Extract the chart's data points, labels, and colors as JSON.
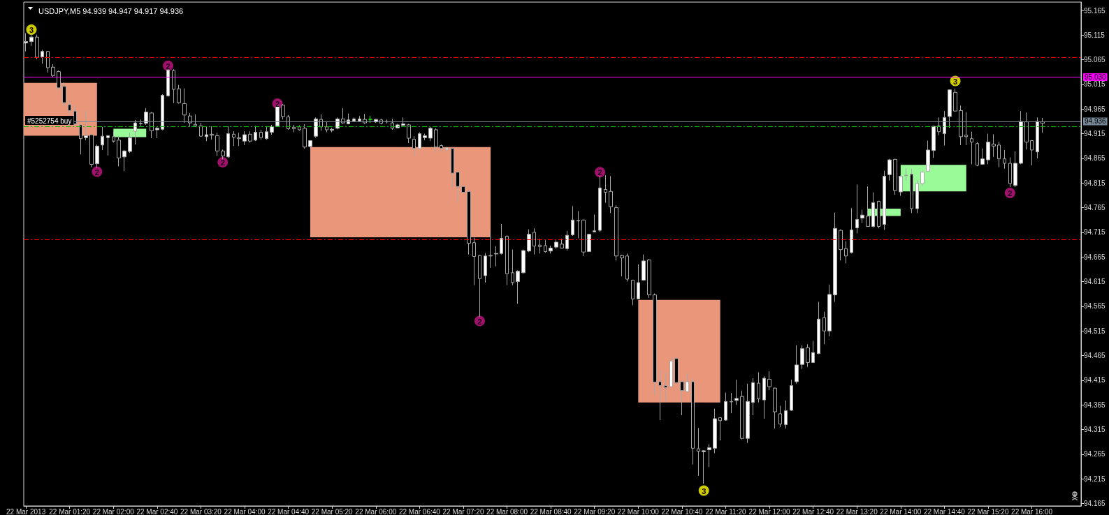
{
  "chart_data": {
    "type": "candlestick",
    "title": "USDJPY,M5 94.939 94.947 94.917 94.936",
    "x": [
      "2013-03-22T00:40",
      "2013-03-22T00:45",
      "2013-03-22T00:50",
      "2013-03-22T00:55",
      "2013-03-22T01:00",
      "2013-03-22T01:05",
      "2013-03-22T01:10",
      "2013-03-22T01:15",
      "2013-03-22T01:20",
      "2013-03-22T01:25",
      "2013-03-22T01:30",
      "2013-03-22T01:35",
      "2013-03-22T01:40",
      "2013-03-22T01:45",
      "2013-03-22T01:50",
      "2013-03-22T01:55",
      "2013-03-22T02:00",
      "2013-03-22T02:05",
      "2013-03-22T02:10",
      "2013-03-22T02:15",
      "2013-03-22T02:20",
      "2013-03-22T02:25",
      "2013-03-22T02:30",
      "2013-03-22T02:35",
      "2013-03-22T02:40",
      "2013-03-22T02:45",
      "2013-03-22T02:50",
      "2013-03-22T02:55",
      "2013-03-22T03:00",
      "2013-03-22T03:05",
      "2013-03-22T03:10",
      "2013-03-22T03:15",
      "2013-03-22T03:20",
      "2013-03-22T03:25",
      "2013-03-22T03:30",
      "2013-03-22T03:35",
      "2013-03-22T03:40",
      "2013-03-22T03:45",
      "2013-03-22T03:50",
      "2013-03-22T03:55",
      "2013-03-22T04:00",
      "2013-03-22T04:05",
      "2013-03-22T04:10",
      "2013-03-22T04:15",
      "2013-03-22T04:20",
      "2013-03-22T04:25",
      "2013-03-22T04:30",
      "2013-03-22T04:35",
      "2013-03-22T04:40",
      "2013-03-22T04:45",
      "2013-03-22T04:50",
      "2013-03-22T04:55",
      "2013-03-22T05:00",
      "2013-03-22T05:05",
      "2013-03-22T05:10",
      "2013-03-22T05:15",
      "2013-03-22T05:20",
      "2013-03-22T05:25",
      "2013-03-22T05:30",
      "2013-03-22T05:35",
      "2013-03-22T05:40",
      "2013-03-22T05:45",
      "2013-03-22T05:50",
      "2013-03-22T05:55",
      "2013-03-22T06:00",
      "2013-03-22T06:05",
      "2013-03-22T06:10",
      "2013-03-22T06:15",
      "2013-03-22T06:20",
      "2013-03-22T06:25",
      "2013-03-22T06:30",
      "2013-03-22T06:35",
      "2013-03-22T06:40",
      "2013-03-22T06:45",
      "2013-03-22T06:50",
      "2013-03-22T06:55",
      "2013-03-22T07:00",
      "2013-03-22T07:05",
      "2013-03-22T07:10",
      "2013-03-22T07:15",
      "2013-03-22T07:20",
      "2013-03-22T07:25",
      "2013-03-22T07:30",
      "2013-03-22T07:35",
      "2013-03-22T07:40",
      "2013-03-22T07:45",
      "2013-03-22T07:50",
      "2013-03-22T07:55",
      "2013-03-22T08:00",
      "2013-03-22T08:05",
      "2013-03-22T08:10",
      "2013-03-22T08:15",
      "2013-03-22T08:20",
      "2013-03-22T08:25",
      "2013-03-22T08:30",
      "2013-03-22T08:35",
      "2013-03-22T08:40",
      "2013-03-22T08:45",
      "2013-03-22T08:50",
      "2013-03-22T08:55",
      "2013-03-22T09:00",
      "2013-03-22T09:05",
      "2013-03-22T09:10",
      "2013-03-22T09:15",
      "2013-03-22T09:20",
      "2013-03-22T09:25",
      "2013-03-22T09:30",
      "2013-03-22T09:35",
      "2013-03-22T09:40",
      "2013-03-22T09:45",
      "2013-03-22T09:50",
      "2013-03-22T09:55",
      "2013-03-22T10:00",
      "2013-03-22T10:05",
      "2013-03-22T10:10",
      "2013-03-22T10:15",
      "2013-03-22T10:20",
      "2013-03-22T10:25",
      "2013-03-22T10:30",
      "2013-03-22T10:35",
      "2013-03-22T10:40",
      "2013-03-22T10:45",
      "2013-03-22T10:50",
      "2013-03-22T10:55",
      "2013-03-22T11:00",
      "2013-03-22T11:05",
      "2013-03-22T11:10",
      "2013-03-22T11:15",
      "2013-03-22T11:20",
      "2013-03-22T11:25",
      "2013-03-22T11:30",
      "2013-03-22T11:35",
      "2013-03-22T11:40",
      "2013-03-22T11:45",
      "2013-03-22T11:50",
      "2013-03-22T11:55",
      "2013-03-22T12:00",
      "2013-03-22T12:05",
      "2013-03-22T12:10",
      "2013-03-22T12:15",
      "2013-03-22T12:20",
      "2013-03-22T12:25",
      "2013-03-22T12:30",
      "2013-03-22T12:35",
      "2013-03-22T12:40",
      "2013-03-22T12:45",
      "2013-03-22T12:50",
      "2013-03-22T12:55",
      "2013-03-22T13:00",
      "2013-03-22T13:05",
      "2013-03-22T13:10",
      "2013-03-22T13:15",
      "2013-03-22T13:20",
      "2013-03-22T13:25",
      "2013-03-22T13:30",
      "2013-03-22T13:35",
      "2013-03-22T13:40",
      "2013-03-22T13:45",
      "2013-03-22T13:50",
      "2013-03-22T13:55",
      "2013-03-22T14:00",
      "2013-03-22T14:05",
      "2013-03-22T14:10",
      "2013-03-22T14:15",
      "2013-03-22T14:20",
      "2013-03-22T14:25",
      "2013-03-22T14:30",
      "2013-03-22T14:35",
      "2013-03-22T14:40",
      "2013-03-22T14:45",
      "2013-03-22T14:50",
      "2013-03-22T14:55",
      "2013-03-22T15:00",
      "2013-03-22T15:05",
      "2013-03-22T15:10",
      "2013-03-22T15:15",
      "2013-03-22T15:20",
      "2013-03-22T15:25",
      "2013-03-22T15:30",
      "2013-03-22T15:35",
      "2013-03-22T15:40",
      "2013-03-22T15:45",
      "2013-03-22T15:50",
      "2013-03-22T15:55",
      "2013-03-22T16:00",
      "2013-03-22T16:05",
      "2013-03-22T16:10"
    ],
    "ohlc": [
      [
        95.099,
        95.119,
        95.082,
        95.102
      ],
      [
        95.102,
        95.116,
        95.093,
        95.111
      ],
      [
        95.111,
        95.116,
        95.066,
        95.07
      ],
      [
        95.071,
        95.085,
        95.057,
        95.082
      ],
      [
        95.082,
        95.083,
        95.039,
        95.049
      ],
      [
        95.05,
        95.056,
        95.03,
        95.033
      ],
      [
        95.041,
        95.043,
        95.002,
        95.008
      ],
      [
        95.011,
        95.019,
        94.971,
        94.978
      ],
      [
        94.974,
        94.983,
        94.955,
        94.962
      ],
      [
        94.961,
        94.972,
        94.93,
        94.935
      ],
      [
        94.933,
        94.934,
        94.873,
        94.905
      ],
      [
        94.907,
        94.962,
        94.902,
        94.911
      ],
      [
        94.913,
        94.914,
        94.847,
        94.853
      ],
      [
        94.854,
        94.893,
        94.846,
        94.89
      ],
      [
        94.892,
        94.929,
        94.882,
        94.91
      ],
      [
        94.907,
        94.912,
        94.871,
        94.911
      ],
      [
        94.909,
        94.92,
        94.897,
        94.9
      ],
      [
        94.902,
        94.91,
        94.849,
        94.866
      ],
      [
        94.868,
        94.882,
        94.839,
        94.88
      ],
      [
        94.879,
        94.917,
        94.876,
        94.907
      ],
      [
        94.92,
        94.943,
        94.893,
        94.937
      ],
      [
        94.936,
        94.944,
        94.931,
        94.935
      ],
      [
        94.936,
        94.967,
        94.933,
        94.959
      ],
      [
        94.957,
        94.959,
        94.906,
        94.921
      ],
      [
        94.923,
        94.93,
        94.906,
        94.926
      ],
      [
        94.924,
        94.995,
        94.922,
        94.993
      ],
      [
        94.992,
        95.047,
        94.99,
        95.044
      ],
      [
        95.043,
        95.046,
        94.977,
        95.005
      ],
      [
        95.006,
        95.014,
        94.976,
        94.978
      ],
      [
        94.976,
        95.007,
        94.937,
        94.953
      ],
      [
        94.951,
        94.957,
        94.929,
        94.937
      ],
      [
        94.934,
        94.954,
        94.929,
        94.931
      ],
      [
        94.931,
        94.937,
        94.909,
        94.91
      ],
      [
        94.909,
        94.93,
        94.9,
        94.913
      ],
      [
        94.914,
        94.93,
        94.903,
        94.912
      ],
      [
        94.911,
        94.917,
        94.87,
        94.88
      ],
      [
        94.88,
        94.883,
        94.863,
        94.87
      ],
      [
        94.868,
        94.93,
        94.866,
        94.915
      ],
      [
        94.914,
        94.92,
        94.89,
        94.908
      ],
      [
        94.907,
        94.917,
        94.89,
        94.905
      ],
      [
        94.9,
        94.92,
        94.892,
        94.913
      ],
      [
        94.914,
        94.92,
        94.897,
        94.9
      ],
      [
        94.902,
        94.931,
        94.9,
        94.918
      ],
      [
        94.918,
        94.923,
        94.903,
        94.907
      ],
      [
        94.905,
        94.93,
        94.903,
        94.919
      ],
      [
        94.918,
        94.933,
        94.913,
        94.929
      ],
      [
        94.931,
        94.974,
        94.93,
        94.971
      ],
      [
        94.973,
        94.975,
        94.944,
        94.95
      ],
      [
        94.949,
        94.953,
        94.923,
        94.925
      ],
      [
        94.928,
        94.933,
        94.918,
        94.925
      ],
      [
        94.929,
        94.932,
        94.921,
        94.923
      ],
      [
        94.926,
        94.934,
        94.885,
        94.888
      ],
      [
        94.889,
        94.902,
        94.888,
        94.901
      ],
      [
        94.91,
        94.948,
        94.907,
        94.945
      ],
      [
        94.944,
        94.954,
        94.921,
        94.929
      ],
      [
        94.929,
        94.939,
        94.918,
        94.923
      ],
      [
        94.922,
        94.927,
        94.918,
        94.924
      ],
      [
        94.926,
        94.948,
        94.924,
        94.945
      ],
      [
        94.945,
        94.967,
        94.935,
        94.937
      ],
      [
        94.935,
        94.956,
        94.934,
        94.943
      ],
      [
        94.941,
        94.948,
        94.94,
        94.945
      ],
      [
        94.941,
        94.951,
        94.94,
        94.945
      ],
      [
        94.944,
        94.955,
        94.935,
        94.937
      ],
      [
        94.944,
        94.951,
        94.937,
        94.944
      ],
      [
        94.939,
        94.945,
        94.937,
        94.944
      ],
      [
        94.943,
        94.945,
        94.934,
        94.936
      ],
      [
        94.94,
        94.944,
        94.936,
        94.939
      ],
      [
        94.937,
        94.945,
        94.923,
        94.926
      ],
      [
        94.927,
        94.935,
        94.926,
        94.933
      ],
      [
        94.932,
        94.948,
        94.929,
        94.935
      ],
      [
        94.933,
        94.935,
        94.896,
        94.906
      ],
      [
        94.904,
        94.91,
        94.87,
        94.885
      ],
      [
        94.885,
        94.918,
        94.884,
        94.915
      ],
      [
        94.907,
        94.915,
        94.902,
        94.911
      ],
      [
        94.906,
        94.929,
        94.9,
        94.926
      ],
      [
        94.923,
        94.926,
        94.878,
        94.888
      ],
      [
        94.891,
        94.893,
        94.878,
        94.885
      ],
      [
        94.883,
        94.888,
        94.879,
        94.886
      ],
      [
        94.885,
        94.888,
        94.805,
        94.835
      ],
      [
        94.837,
        94.838,
        94.776,
        94.808
      ],
      [
        94.808,
        94.809,
        94.795,
        94.796
      ],
      [
        94.798,
        94.801,
        94.67,
        94.693
      ],
      [
        94.694,
        94.704,
        94.608,
        94.666
      ],
      [
        94.668,
        94.669,
        94.544,
        94.621
      ],
      [
        94.627,
        94.673,
        94.613,
        94.667
      ],
      [
        94.668,
        94.715,
        94.643,
        94.667
      ],
      [
        94.671,
        94.687,
        94.646,
        94.672
      ],
      [
        94.672,
        94.732,
        94.67,
        94.703
      ],
      [
        94.707,
        94.709,
        94.608,
        94.631
      ],
      [
        94.633,
        94.68,
        94.608,
        94.613
      ],
      [
        94.615,
        94.638,
        94.57,
        94.636
      ],
      [
        94.633,
        94.68,
        94.631,
        94.678
      ],
      [
        94.677,
        94.721,
        94.675,
        94.711
      ],
      [
        94.715,
        94.723,
        94.67,
        94.687
      ],
      [
        94.689,
        94.702,
        94.672,
        94.686
      ],
      [
        94.688,
        94.699,
        94.674,
        94.676
      ],
      [
        94.677,
        94.688,
        94.672,
        94.683
      ],
      [
        94.685,
        94.699,
        94.682,
        94.695
      ],
      [
        94.691,
        94.702,
        94.682,
        94.683
      ],
      [
        94.682,
        94.718,
        94.678,
        94.709
      ],
      [
        94.71,
        94.768,
        94.708,
        94.74
      ],
      [
        94.739,
        94.758,
        94.703,
        94.738
      ],
      [
        94.74,
        94.741,
        94.667,
        94.675
      ],
      [
        94.676,
        94.712,
        94.675,
        94.711
      ],
      [
        94.716,
        94.751,
        94.715,
        94.718
      ],
      [
        94.719,
        94.829,
        94.716,
        94.805
      ],
      [
        94.802,
        94.831,
        94.775,
        94.796
      ],
      [
        94.798,
        94.829,
        94.754,
        94.767
      ],
      [
        94.765,
        94.77,
        94.658,
        94.667
      ],
      [
        94.668,
        94.669,
        94.626,
        94.663
      ],
      [
        94.667,
        94.672,
        94.615,
        94.62
      ],
      [
        94.618,
        94.619,
        94.567,
        94.58
      ],
      [
        94.58,
        94.65,
        94.579,
        94.613
      ],
      [
        94.618,
        94.67,
        94.617,
        94.657
      ],
      [
        94.659,
        94.661,
        94.582,
        94.588
      ],
      [
        94.588,
        94.591,
        94.385,
        94.411
      ],
      [
        94.412,
        94.436,
        94.334,
        94.404
      ],
      [
        94.404,
        94.432,
        94.372,
        94.4
      ],
      [
        94.402,
        94.462,
        94.401,
        94.454
      ],
      [
        94.459,
        94.462,
        94.408,
        94.41
      ],
      [
        94.412,
        94.413,
        94.344,
        94.394
      ],
      [
        94.392,
        94.429,
        94.391,
        94.412
      ],
      [
        94.412,
        94.419,
        94.244,
        94.277
      ],
      [
        94.276,
        94.318,
        94.221,
        94.271
      ],
      [
        94.27,
        94.273,
        94.205,
        94.272
      ],
      [
        94.274,
        94.285,
        94.239,
        94.278
      ],
      [
        94.277,
        94.357,
        94.267,
        94.337
      ],
      [
        94.339,
        94.34,
        94.293,
        94.333
      ],
      [
        94.334,
        94.39,
        94.333,
        94.372
      ],
      [
        94.372,
        94.389,
        94.348,
        94.371
      ],
      [
        94.374,
        94.416,
        94.365,
        94.378
      ],
      [
        94.382,
        94.394,
        94.295,
        94.297
      ],
      [
        94.297,
        94.408,
        94.288,
        94.372
      ],
      [
        94.37,
        94.419,
        94.344,
        94.41
      ],
      [
        94.409,
        94.431,
        94.37,
        94.377
      ],
      [
        94.375,
        94.423,
        94.337,
        94.419
      ],
      [
        94.417,
        94.433,
        94.395,
        94.402
      ],
      [
        94.399,
        94.4,
        94.317,
        94.351
      ],
      [
        94.347,
        94.363,
        94.32,
        94.326
      ],
      [
        94.325,
        94.374,
        94.317,
        94.353
      ],
      [
        94.354,
        94.416,
        94.353,
        94.404
      ],
      [
        94.412,
        94.486,
        94.408,
        94.446
      ],
      [
        94.447,
        94.486,
        94.438,
        94.479
      ],
      [
        94.481,
        94.488,
        94.442,
        94.451
      ],
      [
        94.451,
        94.495,
        94.45,
        94.471
      ],
      [
        94.469,
        94.574,
        94.468,
        94.539
      ],
      [
        94.542,
        94.554,
        94.488,
        94.515
      ],
      [
        94.515,
        94.609,
        94.504,
        94.589
      ],
      [
        94.588,
        94.755,
        94.574,
        94.723
      ],
      [
        94.719,
        94.721,
        94.658,
        94.68
      ],
      [
        94.682,
        94.697,
        94.652,
        94.667
      ],
      [
        94.674,
        94.764,
        94.672,
        94.72
      ],
      [
        94.724,
        94.812,
        94.713,
        94.741
      ],
      [
        94.744,
        94.761,
        94.734,
        94.75
      ],
      [
        94.748,
        94.808,
        94.726,
        94.727
      ],
      [
        94.727,
        94.796,
        94.725,
        94.775
      ],
      [
        94.778,
        94.779,
        94.723,
        94.727
      ],
      [
        94.731,
        94.84,
        94.72,
        94.829
      ],
      [
        94.832,
        94.864,
        94.82,
        94.862
      ],
      [
        94.863,
        94.864,
        94.791,
        94.8
      ],
      [
        94.797,
        94.83,
        94.789,
        94.829
      ],
      [
        94.831,
        94.845,
        94.82,
        94.83
      ],
      [
        94.833,
        94.844,
        94.754,
        94.763
      ],
      [
        94.763,
        94.821,
        94.754,
        94.814
      ],
      [
        94.814,
        94.84,
        94.809,
        94.837
      ],
      [
        94.839,
        94.901,
        94.838,
        94.882
      ],
      [
        94.881,
        94.931,
        94.866,
        94.93
      ],
      [
        94.931,
        94.948,
        94.912,
        94.919
      ],
      [
        94.915,
        94.961,
        94.891,
        94.948
      ],
      [
        94.95,
        95.005,
        94.927,
        95.004
      ],
      [
        94.999,
        95.006,
        94.96,
        94.961
      ],
      [
        94.962,
        94.972,
        94.892,
        94.909
      ],
      [
        94.912,
        94.959,
        94.892,
        94.909
      ],
      [
        94.905,
        94.919,
        94.853,
        94.898
      ],
      [
        94.895,
        94.898,
        94.849,
        94.851
      ],
      [
        94.853,
        94.885,
        94.852,
        94.864
      ],
      [
        94.862,
        94.915,
        94.853,
        94.898
      ],
      [
        94.894,
        94.914,
        94.868,
        94.89
      ],
      [
        94.892,
        94.899,
        94.847,
        94.864
      ],
      [
        94.864,
        94.882,
        94.844,
        94.855
      ],
      [
        94.855,
        94.867,
        94.807,
        94.814
      ],
      [
        94.81,
        94.879,
        94.807,
        94.855
      ],
      [
        94.855,
        94.961,
        94.853,
        94.94
      ],
      [
        94.939,
        94.958,
        94.883,
        94.898
      ],
      [
        94.901,
        94.902,
        94.851,
        94.882
      ],
      [
        94.878,
        94.948,
        94.865,
        94.94
      ],
      [
        94.939,
        94.947,
        94.917,
        94.936
      ]
    ],
    "color": "#a8a8a8",
    "colors": [
      "#ffffff",
      "#ffffff",
      "#000000",
      "#ffffff",
      "#000000",
      "#000000",
      "#000000",
      "#000000",
      "#000000",
      "#000000",
      "#000000",
      "#ffffff",
      "#000000",
      "#ffffff",
      "#ffffff",
      "#ffffff",
      "#000000",
      "#000000",
      "#ffffff",
      "#ffffff",
      "#ffffff",
      "#000000",
      "#ffffff",
      "#000000",
      "#ffffff",
      "#ffffff",
      "#ffffff",
      "#000000",
      "#000000",
      "#000000",
      "#000000",
      "#000000",
      "#000000",
      "#ffffff",
      "#000000",
      "#000000",
      "#000000",
      "#ffffff",
      "#000000",
      "#000000",
      "#ffffff",
      "#000000",
      "#ffffff",
      "#000000",
      "#ffffff",
      "#ffffff",
      "#ffffff",
      "#000000",
      "#000000",
      "#000000",
      "#000000",
      "#000000",
      "#ffffff",
      "#ffffff",
      "#000000",
      "#000000",
      "#ffffff",
      "#ffffff",
      "#000000",
      "#ffffff",
      "#ffffff",
      "#ffffff",
      "#000000",
      "#00ff00",
      "#ffffff",
      "#000000",
      "#000000",
      "#000000",
      "#ffffff",
      "#ffffff",
      "#000000",
      "#000000",
      "#ffffff",
      "#ffffff",
      "#ffffff",
      "#000000",
      "#000000",
      "#ffffff",
      "#000000",
      "#000000",
      "#000000",
      "#000000",
      "#000000",
      "#000000",
      "#ffffff",
      "#000000",
      "#ffffff",
      "#ffffff",
      "#000000",
      "#000000",
      "#ffffff",
      "#ffffff",
      "#ffffff",
      "#000000",
      "#000000",
      "#000000",
      "#ffffff",
      "#ffffff",
      "#000000",
      "#ffffff",
      "#ffffff",
      "#000000",
      "#000000",
      "#ffffff",
      "#ffffff",
      "#ffffff",
      "#000000",
      "#000000",
      "#000000",
      "#000000",
      "#000000",
      "#000000",
      "#ffffff",
      "#ffffff",
      "#000000",
      "#000000",
      "#000000",
      "#000000",
      "#ffffff",
      "#000000",
      "#000000",
      "#ffffff",
      "#000000",
      "#000000",
      "#ffffff",
      "#ffffff",
      "#ffffff",
      "#000000",
      "#ffffff",
      "#000000",
      "#ffffff",
      "#000000",
      "#ffffff",
      "#ffffff",
      "#000000",
      "#ffffff",
      "#000000",
      "#000000",
      "#000000",
      "#ffffff",
      "#ffffff",
      "#ffffff",
      "#ffffff",
      "#000000",
      "#ffffff",
      "#ffffff",
      "#000000",
      "#ffffff",
      "#ffffff",
      "#000000",
      "#000000",
      "#ffffff",
      "#ffffff",
      "#ffffff",
      "#000000",
      "#ffffff",
      "#000000",
      "#ffffff",
      "#ffffff",
      "#000000",
      "#ffffff",
      "#000000",
      "#000000",
      "#ffffff",
      "#ffffff",
      "#ffffff",
      "#ffffff",
      "#000000",
      "#ffffff",
      "#ffffff",
      "#000000",
      "#000000",
      "#000000",
      "#000000",
      "#000000",
      "#ffffff",
      "#ffffff",
      "#000000",
      "#000000",
      "#000000",
      "#000000",
      "#ffffff",
      "#ffffff",
      "#000000",
      "#000000",
      "#ffffff",
      "#000000"
    ],
    "xlim": [
      "2013-03-22T00:38",
      "2013-03-22T16:45"
    ],
    "xticks": [
      {
        "value": "2013-03-22T00:40",
        "label": "22 Mar 2013"
      },
      {
        "value": "2013-03-22T01:20",
        "label": "22 Mar 01:20"
      },
      {
        "value": "2013-03-22T02:00",
        "label": "22 Mar 02:00"
      },
      {
        "value": "2013-03-22T02:40",
        "label": "22 Mar 02:40"
      },
      {
        "value": "2013-03-22T03:20",
        "label": "22 Mar 03:20"
      },
      {
        "value": "2013-03-22T04:00",
        "label": "22 Mar 04:00"
      },
      {
        "value": "2013-03-22T04:40",
        "label": "22 Mar 04:40"
      },
      {
        "value": "2013-03-22T05:20",
        "label": "22 Mar 05:20"
      },
      {
        "value": "2013-03-22T06:00",
        "label": "22 Mar 06:00"
      },
      {
        "value": "2013-03-22T06:40",
        "label": "22 Mar 06:40"
      },
      {
        "value": "2013-03-22T07:20",
        "label": "22 Mar 07:20"
      },
      {
        "value": "2013-03-22T08:00",
        "label": "22 Mar 08:00"
      },
      {
        "value": "2013-03-22T08:40",
        "label": "22 Mar 08:40"
      },
      {
        "value": "2013-03-22T09:20",
        "label": "22 Mar 09:20"
      },
      {
        "value": "2013-03-22T10:00",
        "label": "22 Mar 10:00"
      },
      {
        "value": "2013-03-22T10:40",
        "label": "22 Mar 10:40"
      },
      {
        "value": "2013-03-22T11:20",
        "label": "22 Mar 11:20"
      },
      {
        "value": "2013-03-22T12:00",
        "label": "22 Mar 12:00"
      },
      {
        "value": "2013-03-22T12:40",
        "label": "22 Mar 12:40"
      },
      {
        "value": "2013-03-22T13:20",
        "label": "22 Mar 13:20"
      },
      {
        "value": "2013-03-22T14:00",
        "label": "22 Mar 14:00"
      },
      {
        "value": "2013-03-22T14:40",
        "label": "22 Mar 14:40"
      },
      {
        "value": "2013-03-22T15:20",
        "label": "22 Mar 15:20"
      },
      {
        "value": "2013-03-22T16:00",
        "label": "22 Mar 16:00"
      }
    ],
    "ylim": [
      94.16,
      95.182
    ],
    "yticks": [
      94.165,
      94.215,
      94.265,
      94.315,
      94.365,
      94.415,
      94.465,
      94.515,
      94.565,
      94.615,
      94.665,
      94.715,
      94.765,
      94.815,
      94.865,
      94.915,
      94.965,
      95.015,
      95.065,
      95.115,
      95.165
    ],
    "ref_lines": [
      {
        "axis": "y",
        "value": 95.071,
        "color": "#ff0000",
        "line_style": "dashed"
      },
      {
        "axis": "y",
        "value": 95.03,
        "label": "95.030",
        "color": "#ff00ff",
        "line_style": "solid"
      },
      {
        "axis": "y",
        "value": 94.936,
        "label": "94.936",
        "color": "#778899",
        "line_style": "solid"
      },
      {
        "axis": "y",
        "value": 94.931,
        "label": "#5252754 buy",
        "color": "#00c000",
        "line_style": "dashed"
      },
      {
        "axis": "y",
        "value": 94.7,
        "color": "#ff0000",
        "line_style": "dashed"
      }
    ],
    "annotations": [
      {
        "text": "2",
        "x": "2013-03-22T01:45",
        "y": 94.838
      },
      {
        "text": "2",
        "x": "2013-03-22T02:50",
        "y": 95.053
      },
      {
        "text": "2",
        "x": "2013-03-22T03:40",
        "y": 94.857
      },
      {
        "text": "2",
        "x": "2013-03-22T04:30",
        "y": 94.976
      },
      {
        "text": "2",
        "x": "2013-03-22T07:35",
        "y": 94.535
      },
      {
        "text": "2",
        "x": "2013-03-22T09:25",
        "y": 94.837
      },
      {
        "text": "2",
        "x": "2013-03-22T15:40",
        "y": 94.795
      },
      {
        "text": "3",
        "x": "2013-03-22T00:45",
        "y": 95.126
      },
      {
        "text": "3",
        "x": "2013-03-22T11:00",
        "y": 94.191
      },
      {
        "text": "3",
        "x": "2013-03-22T14:50",
        "y": 95.022
      }
    ],
    "series": [
      {
        "type": "line",
        "x": [
          "2013-03-22T00:38",
          "2013-03-22T01:45"
        ],
        "values": [
          null,
          null
        ],
        "lower": [
          94.911,
          94.911
        ],
        "upper": [
          95.018,
          95.018
        ],
        "color": "#e9967a"
      },
      {
        "type": "line",
        "x": [
          "2013-03-22T05:00",
          "2013-03-22T07:45"
        ],
        "values": [
          null,
          null
        ],
        "lower": [
          94.705,
          94.705
        ],
        "upper": [
          94.888,
          94.888
        ],
        "color": "#e9967a"
      },
      {
        "type": "line",
        "x": [
          "2013-03-22T10:00",
          "2013-03-22T11:15"
        ],
        "values": [
          null,
          null
        ],
        "lower": [
          94.37,
          94.37
        ],
        "upper": [
          94.578,
          94.578
        ],
        "color": "#e9967a"
      },
      {
        "type": "line",
        "x": [
          "2013-03-22T02:00",
          "2013-03-22T02:30"
        ],
        "values": [
          null,
          null
        ],
        "lower": [
          94.908,
          94.908
        ],
        "upper": [
          94.925,
          94.925
        ],
        "color": "#98fb98"
      },
      {
        "type": "line",
        "x": [
          "2013-03-22T13:30",
          "2013-03-22T14:00"
        ],
        "values": [
          null,
          null
        ],
        "lower": [
          94.748,
          94.748
        ],
        "upper": [
          94.763,
          94.763
        ],
        "color": "#98fb98"
      },
      {
        "type": "line",
        "x": [
          "2013-03-22T14:00",
          "2013-03-22T15:00"
        ],
        "values": [
          null,
          null
        ],
        "lower": [
          94.798,
          94.798
        ],
        "upper": [
          94.852,
          94.852
        ],
        "color": "#98fb98"
      },
      {
        "type": "scatter",
        "x": [
          "2013-03-22T01:45",
          "2013-03-22T02:50",
          "2013-03-22T03:40",
          "2013-03-22T04:30",
          "2013-03-22T07:35",
          "2013-03-22T09:25",
          "2013-03-22T15:40"
        ],
        "values": [
          94.838,
          95.053,
          94.857,
          94.976,
          94.535,
          94.837,
          94.795
        ],
        "color": "#c71585",
        "marker": "circle"
      },
      {
        "type": "scatter",
        "x": [
          "2013-03-22T00:45",
          "2013-03-22T11:00",
          "2013-03-22T14:50"
        ],
        "values": [
          95.126,
          94.191,
          95.022
        ],
        "color": "#ffff00",
        "marker": "circle"
      }
    ]
  }
}
